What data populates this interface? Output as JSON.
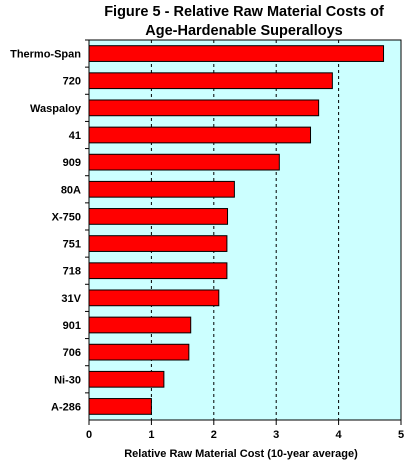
{
  "chart_data": {
    "type": "bar",
    "orientation": "horizontal",
    "title": [
      "Figure 5 - Relative Raw Material Costs of",
      "Age-Hardenable Superalloys"
    ],
    "xlabel": "Relative Raw Material Cost (10-year average)",
    "ylabel": "",
    "xlim": [
      0,
      5
    ],
    "xticks": [
      "0",
      "1",
      "2",
      "3",
      "4",
      "5"
    ],
    "categories": [
      "Thermo-Span",
      "720",
      "Waspaloy",
      "41",
      "909",
      "80A",
      "X-750",
      "751",
      "718",
      "31V",
      "901",
      "706",
      "Ni-30",
      "A-286"
    ],
    "values": [
      4.72,
      3.9,
      3.68,
      3.55,
      3.05,
      2.33,
      2.22,
      2.21,
      2.21,
      2.08,
      1.63,
      1.6,
      1.2,
      1.0
    ],
    "grid": "vertical dashed",
    "colors": {
      "bar": "#ff0000",
      "plot_bg": "#ccffff"
    }
  }
}
